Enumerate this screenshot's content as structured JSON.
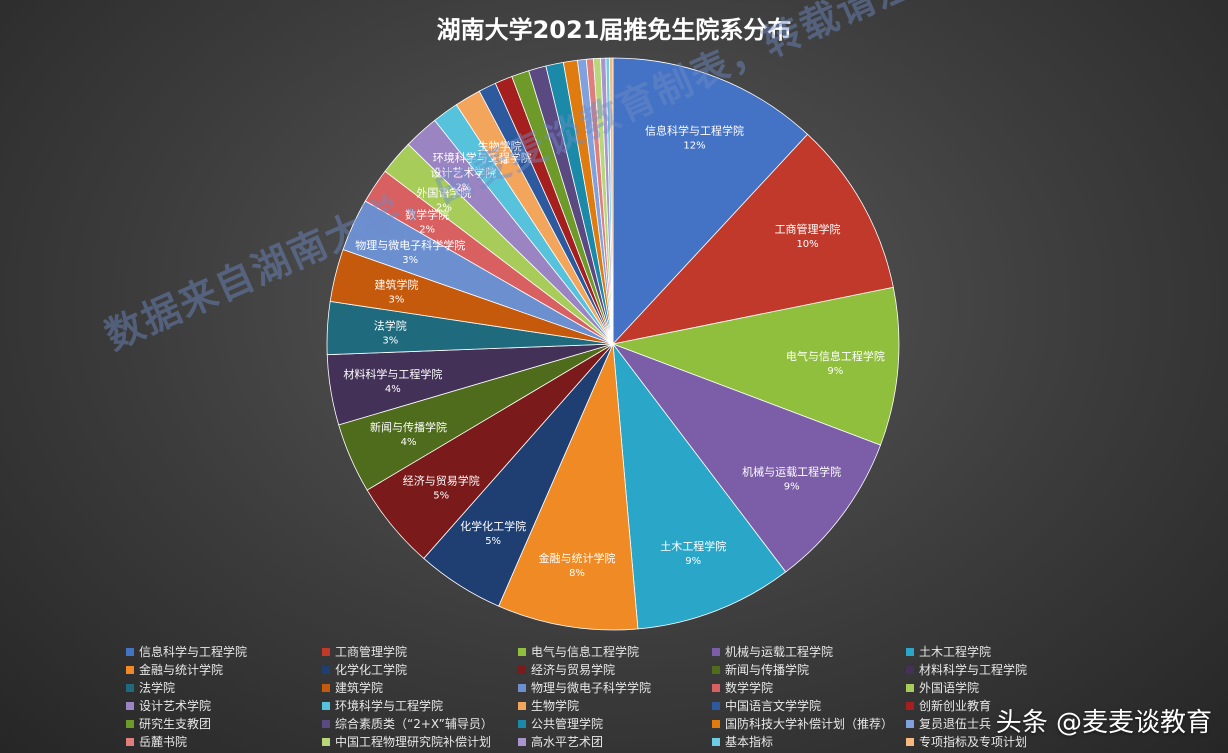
{
  "title": "湖南大学2021届推免生院系分布",
  "watermark": "数据来自湖南大学，由麦麦谈教育制表，转载请注明出处",
  "brand": "头条 @麦麦谈教育",
  "chart_data": {
    "type": "pie",
    "title": "湖南大学2021届推免生院系分布",
    "categories": [
      "信息科学与工程学院",
      "工商管理学院",
      "电气与信息工程学院",
      "机械与运载工程学院",
      "土木工程学院",
      "金融与统计学院",
      "化学化工学院",
      "经济与贸易学院",
      "新闻与传播学院",
      "材料科学与工程学院",
      "法学院",
      "建筑学院",
      "物理与微电子科学学院",
      "数学学院",
      "外国语学院",
      "设计艺术学院",
      "环境科学与工程学院",
      "生物学院",
      "中国语言文学学院",
      "创新创业教育",
      "研究生支教团",
      "综合素质类（“2+X”辅导员）",
      "公共管理学院",
      "国防科技大学补偿计划（推荐）",
      "复员退伍士兵",
      "岳麓书院",
      "中国工程物理研究院补偿计划",
      "高水平艺术团",
      "基本指标",
      "专项指标及专项计划"
    ],
    "values": [
      12,
      10,
      9,
      9,
      9,
      8,
      5,
      5,
      4,
      4,
      3,
      3,
      3,
      2,
      2,
      2,
      1.5,
      1.5,
      1,
      1,
      1,
      1,
      1,
      0.8,
      0.5,
      0.4,
      0.4,
      0.3,
      0.2,
      0.2
    ],
    "labels": [
      "12%",
      "10%",
      "9%",
      "9%",
      "9%",
      "8%",
      "5%",
      "5%",
      "4%",
      "4%",
      "3%",
      "3%",
      "3%",
      "2%",
      "2%",
      "2%",
      "",
      "1%",
      "",
      "",
      "",
      "",
      "",
      "",
      "",
      "",
      "",
      "",
      "",
      ""
    ],
    "colors": [
      "#4472c4",
      "#c0392b",
      "#8fbf3c",
      "#7b5ea7",
      "#2aa6c9",
      "#f08a24",
      "#1f3f73",
      "#7a1a1a",
      "#4f6b1c",
      "#433158",
      "#1f6b7d",
      "#c65a0c",
      "#6c8fd0",
      "#d96060",
      "#a8cc5a",
      "#9a84c2",
      "#56c2dc",
      "#f4a55c",
      "#2d5a9e",
      "#a51f1f",
      "#6e9a2a",
      "#5b4a82",
      "#1a8aa8",
      "#e07b10",
      "#7fa1dd",
      "#e07e7e",
      "#b8d67a",
      "#a995cd",
      "#6dcde3",
      "#f6b980"
    ]
  },
  "legend": [
    "信息科学与工程学院",
    "工商管理学院",
    "电气与信息工程学院",
    "机械与运载工程学院",
    "土木工程学院",
    "金融与统计学院",
    "化学化工学院",
    "经济与贸易学院",
    "新闻与传播学院",
    "材料科学与工程学院",
    "法学院",
    "建筑学院",
    "物理与微电子科学学院",
    "数学学院",
    "外国语学院",
    "设计艺术学院",
    "环境科学与工程学院",
    "生物学院",
    "中国语言文学学院",
    "创新创业教育",
    "研究生支教团",
    "综合素质类（“2+X”辅导员）",
    "公共管理学院",
    "国防科技大学补偿计划（推荐）",
    "复员退伍士兵",
    "岳麓书院",
    "中国工程物理研究院补偿计划",
    "高水平艺术团",
    "基本指标",
    "专项指标及专项计划"
  ]
}
